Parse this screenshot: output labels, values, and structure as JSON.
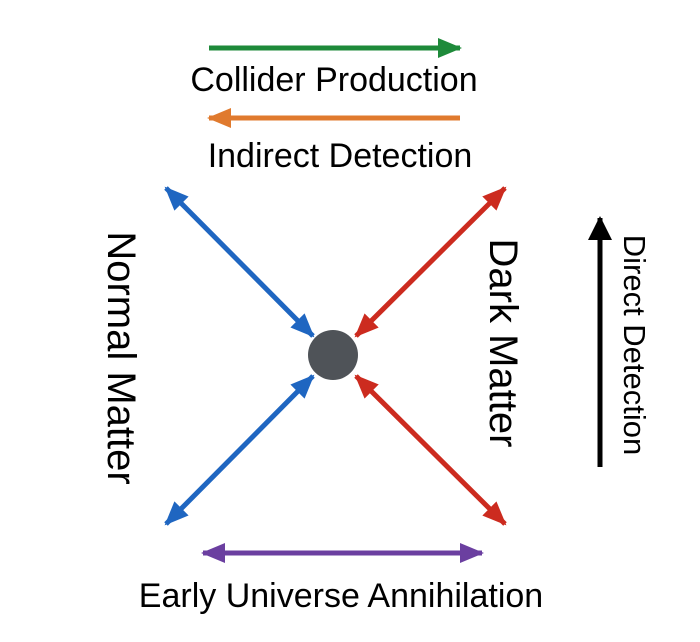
{
  "labels": {
    "collider_production": "Collider Production",
    "indirect_detection": "Indirect Detection",
    "normal_matter": "Normal Matter",
    "dark_matter": "Dark Matter",
    "direct_detection": "Direct Detection",
    "early_universe_annihilation": "Early Universe Annihilation"
  },
  "colors": {
    "collider": "#1e8a3a",
    "indirect": "#e07a2e",
    "normal_matter": "#1f66c1",
    "dark_matter": "#cc2b1f",
    "direct": "#000000",
    "annihilation": "#6b3fa0",
    "vertex": "#4f5358"
  }
}
